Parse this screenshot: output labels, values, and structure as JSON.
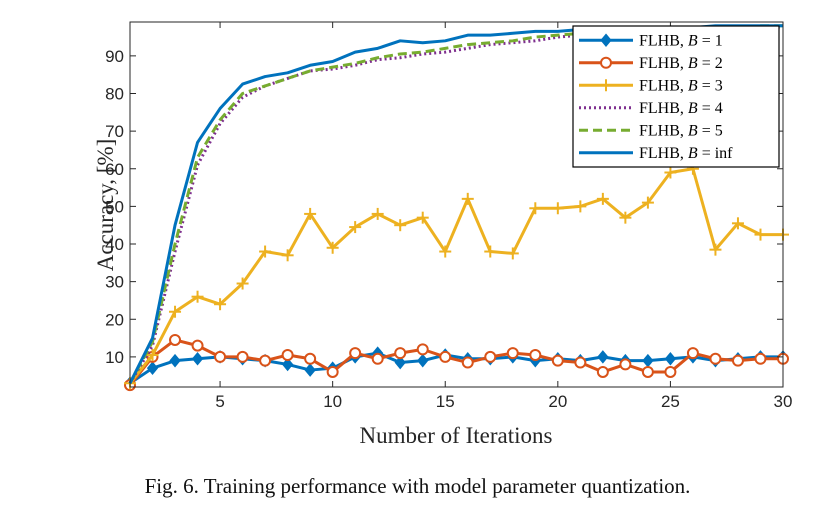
{
  "chart_data": {
    "type": "line",
    "xlabel": "Number of Iterations",
    "ylabel": "Accuracy, [%]",
    "xlim": [
      1,
      30
    ],
    "ylim": [
      2,
      99
    ],
    "xticks": [
      5,
      10,
      15,
      20,
      25,
      30
    ],
    "yticks": [
      10,
      20,
      30,
      40,
      50,
      60,
      70,
      80,
      90
    ],
    "grid": false,
    "legend_position": "top-right",
    "x": [
      1,
      2,
      3,
      4,
      5,
      6,
      7,
      8,
      9,
      10,
      11,
      12,
      13,
      14,
      15,
      16,
      17,
      18,
      19,
      20,
      21,
      22,
      23,
      24,
      25,
      26,
      27,
      28,
      29,
      30
    ],
    "series": [
      {
        "name": "FLHB, B = 1",
        "name_prefix": "FLHB, ",
        "name_var": "B",
        "name_suffix": " = 1",
        "color": "#0072BD",
        "style": "solid",
        "marker": "diamond",
        "values": [
          3,
          7,
          9,
          9.5,
          10,
          9.5,
          9,
          8,
          6.5,
          7,
          10,
          11,
          8.5,
          9,
          10.5,
          9.5,
          9.5,
          10,
          9,
          9.5,
          9,
          10,
          9,
          9,
          9.5,
          10,
          9,
          9.5,
          10,
          10
        ]
      },
      {
        "name": "FLHB, B = 2",
        "name_prefix": "FLHB, ",
        "name_var": "B",
        "name_suffix": " = 2",
        "color": "#D95319",
        "style": "solid",
        "marker": "circle",
        "values": [
          2.5,
          10,
          14.5,
          13,
          10,
          10,
          9,
          10.5,
          9.5,
          6,
          11,
          9.5,
          11,
          12,
          10,
          8.5,
          10,
          11,
          10.5,
          9,
          8.5,
          6,
          8,
          6,
          6,
          11,
          9.5,
          9,
          9.5,
          9.5
        ]
      },
      {
        "name": "FLHB, B = 3",
        "name_prefix": "FLHB, ",
        "name_var": "B",
        "name_suffix": " = 3",
        "color": "#EDB120",
        "style": "solid",
        "marker": "plus",
        "values": [
          3,
          10.5,
          22,
          26,
          24,
          29.5,
          38,
          37,
          48,
          39,
          44.5,
          48,
          45,
          47,
          38,
          52,
          38,
          37.5,
          49.5,
          49.5,
          50,
          52,
          47,
          51,
          59,
          60,
          38.5,
          45.5,
          42.5,
          42.5
        ]
      },
      {
        "name": "FLHB, B = 4",
        "name_prefix": "FLHB, ",
        "name_var": "B",
        "name_suffix": " = 4",
        "color": "#7E2F8E",
        "style": "dotted",
        "marker": "none",
        "values": [
          3,
          13,
          38,
          61,
          72,
          79,
          82,
          84,
          86,
          86.5,
          87.5,
          89,
          89.5,
          90.5,
          91,
          92,
          93,
          93.5,
          94,
          95,
          95.5,
          96,
          96.5,
          96.5,
          97,
          97,
          97,
          97,
          97.5,
          97.5
        ]
      },
      {
        "name": "FLHB, B = 5",
        "name_prefix": "FLHB, ",
        "name_var": "B",
        "name_suffix": " = 5",
        "color": "#77AC30",
        "style": "dashed",
        "marker": "none",
        "values": [
          3,
          14,
          40,
          63,
          73,
          80,
          82,
          84,
          86,
          87,
          88,
          89.5,
          90.5,
          91,
          92,
          93,
          93.5,
          94,
          95,
          95.5,
          96,
          96.5,
          96.5,
          97,
          97,
          97.5,
          97.5,
          97.5,
          98,
          98
        ]
      },
      {
        "name": "FLHB, B = inf",
        "name_prefix": "FLHB, ",
        "name_var": "B",
        "name_suffix": " = inf",
        "color": "#0072BD",
        "style": "solid",
        "marker": "none",
        "values": [
          3,
          15,
          45,
          67,
          76,
          82.5,
          84.5,
          85.5,
          87.5,
          88.5,
          91,
          92,
          94,
          93.5,
          94,
          95.5,
          95.5,
          96,
          96.5,
          96.5,
          97,
          97,
          97.5,
          97.5,
          97.5,
          97.5,
          98,
          98,
          98,
          98
        ]
      }
    ]
  },
  "caption": "Fig. 6.  Training performance with model parameter quantization."
}
